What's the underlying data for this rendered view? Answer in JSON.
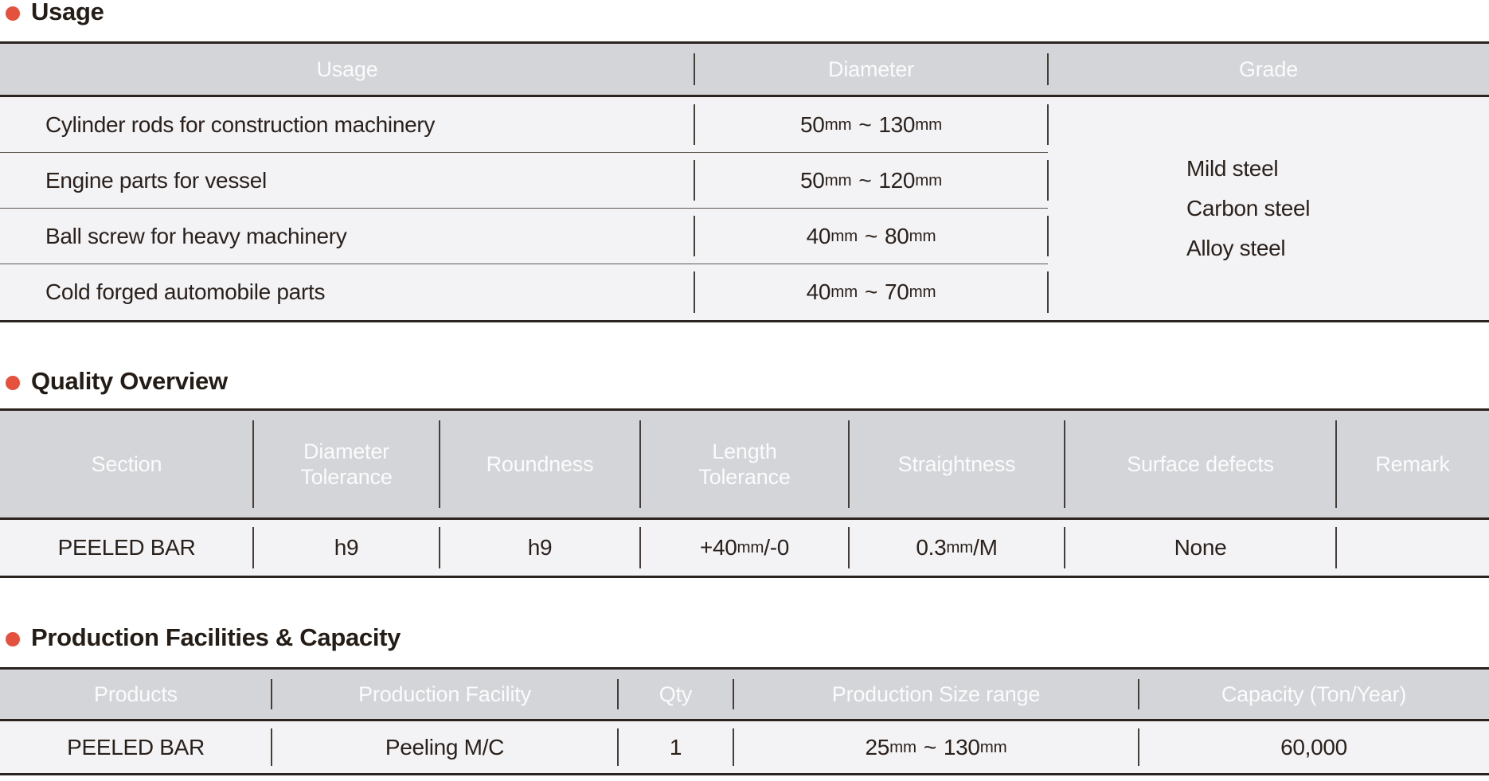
{
  "units": {
    "mm_label": "mm",
    "range_separator": "~"
  },
  "colors": {
    "accent_bullet": "#e5513c",
    "table_header_bg": "#d3d5d8",
    "table_row_bg": "#f3f3f5",
    "table_border_dark": "#2b2320",
    "header_text": "#fbfbfc",
    "body_text": "#2a211c"
  },
  "usage_section": {
    "title": "Usage",
    "headers": {
      "usage": "Usage",
      "diameter": "Diameter",
      "grade": "Grade"
    },
    "rows": [
      {
        "usage": "Cylinder rods for construction machinery",
        "dia_from": "50",
        "dia_to": "130"
      },
      {
        "usage": "Engine parts for vessel",
        "dia_from": "50",
        "dia_to": "120"
      },
      {
        "usage": "Ball screw for heavy machinery",
        "dia_from": "40",
        "dia_to": "80"
      },
      {
        "usage": "Cold forged automobile parts",
        "dia_from": "40",
        "dia_to": "70"
      }
    ],
    "grade_lines": [
      "Mild steel",
      "Carbon steel",
      "Alloy steel"
    ]
  },
  "quality_section": {
    "title": "Quality Overview",
    "headers": {
      "section": "Section",
      "diameter_tolerance_line1": "Diameter",
      "diameter_tolerance_line2": "Tolerance",
      "roundness": "Roundness",
      "length_tolerance_line1": "Length",
      "length_tolerance_line2": "Tolerance",
      "straightness": "Straightness",
      "surface_defects": "Surface defects",
      "remark": "Remark"
    },
    "row": {
      "section": "PEELED BAR",
      "diameter_tolerance": "h9",
      "roundness": "h9",
      "length_tolerance_pre": "+40",
      "length_tolerance_post": "/-0",
      "straightness_pre": "0.3",
      "straightness_post": "/M",
      "surface_defects": "None",
      "remark": ""
    }
  },
  "production_section": {
    "title": "Production Facilities & Capacity",
    "headers": {
      "products": "Products",
      "production_facility": "Production Facility",
      "qty": "Qty",
      "production_size_range": "Production Size range",
      "capacity": "Capacity (Ton/Year)"
    },
    "row": {
      "products": "PEELED BAR",
      "production_facility": "Peeling M/C",
      "qty": "1",
      "size_from": "25",
      "size_to": "130",
      "capacity": "60,000"
    }
  }
}
